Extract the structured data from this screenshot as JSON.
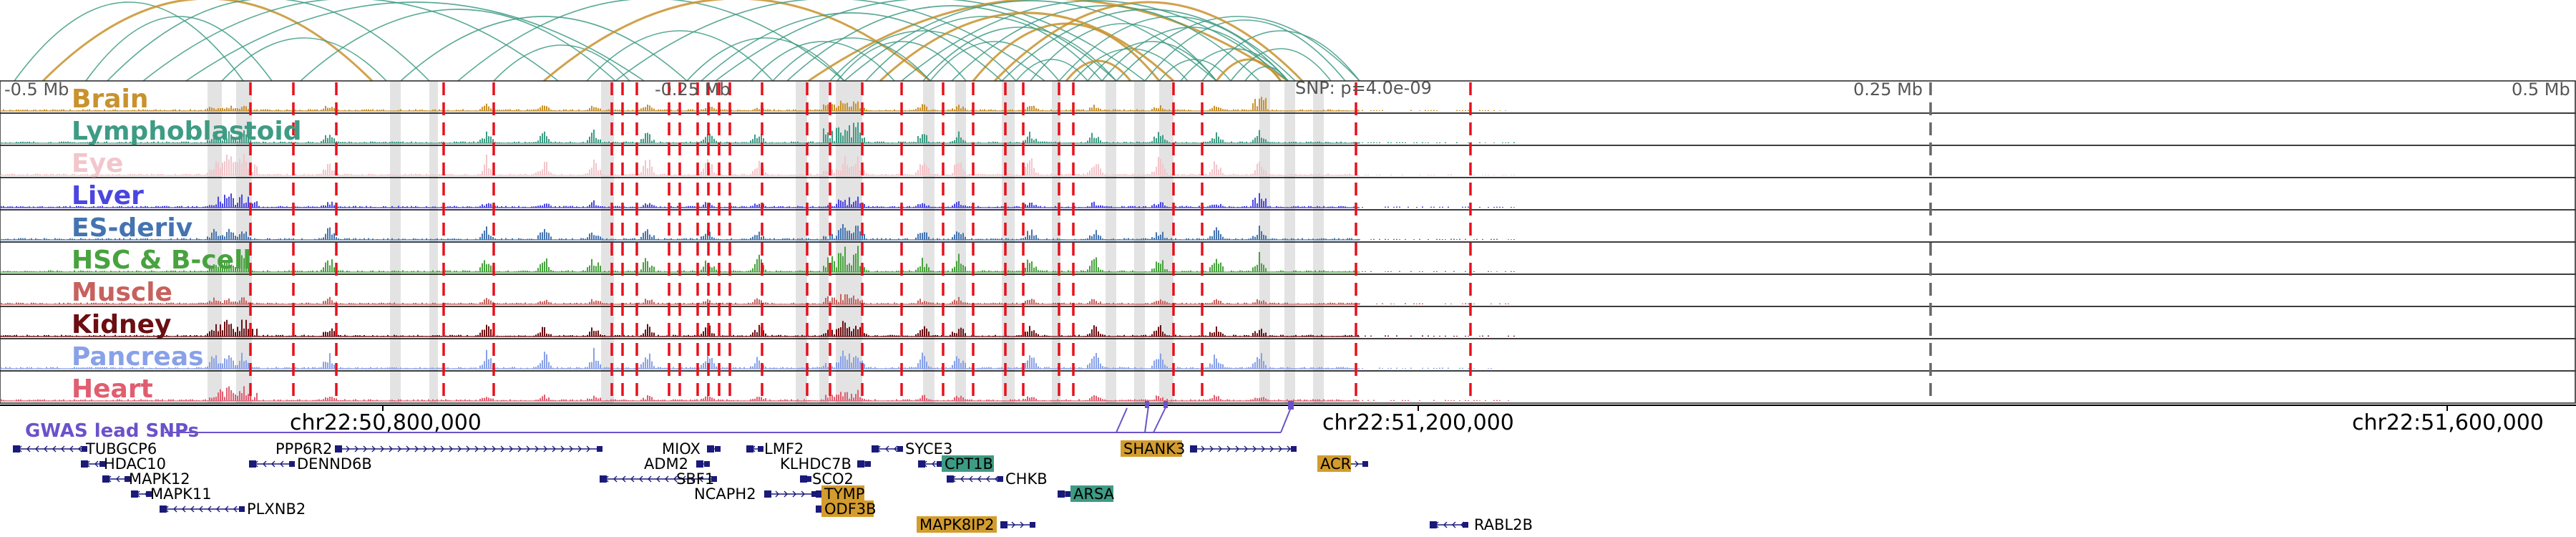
{
  "colors": {
    "brain": "#c8922d",
    "lymphoblastoid": "#3e9b84",
    "eye": "#f2c6cb",
    "liver": "#4a46e0",
    "es_deriv": "#4474b0",
    "hsc_bcell": "#48a23e",
    "muscle": "#c6625e",
    "kidney": "#6b0f12",
    "pancreas": "#88a1e8",
    "heart": "#e05e6f",
    "snp": "#6b52c9",
    "red_dash": "#e8101c",
    "gene_strand": "#1a1a7a",
    "gene_highlight_orange": "#d39c2e",
    "gene_highlight_teal": "#3e9b84",
    "arc_green": "#3e9b84",
    "arc_orange": "#c8922d"
  },
  "distance_labels": [
    "-0.5 Mb",
    "-0.25 Mb",
    "SNP: p=4.0e-09",
    "0.25 Mb",
    "0.5 Mb"
  ],
  "tracks": [
    {
      "name": "Brain",
      "key": "brain"
    },
    {
      "name": "Lymphoblastoid",
      "key": "lymphoblastoid"
    },
    {
      "name": "Eye",
      "key": "eye"
    },
    {
      "name": "Liver",
      "key": "liver"
    },
    {
      "name": "ES-deriv",
      "key": "es_deriv"
    },
    {
      "name": "HSC & B-cell",
      "key": "hsc_bcell"
    },
    {
      "name": "Muscle",
      "key": "muscle"
    },
    {
      "name": "Kidney",
      "key": "kidney"
    },
    {
      "name": "Pancreas",
      "key": "pancreas"
    },
    {
      "name": "Heart",
      "key": "heart"
    }
  ],
  "coordinates": [
    "chr22:50,800,000",
    "chr22:51,200,000",
    "chr22:51,600,000"
  ],
  "gwas_label": "GWAS lead SNPs",
  "genes": [
    {
      "name": "TUBGCP6"
    },
    {
      "name": "HDAC10"
    },
    {
      "name": "MAPK12"
    },
    {
      "name": "MAPK11"
    },
    {
      "name": "PLXNB2"
    },
    {
      "name": "PPP6R2"
    },
    {
      "name": "DENND6B"
    },
    {
      "name": "MIOX"
    },
    {
      "name": "ADM2"
    },
    {
      "name": "SBF1"
    },
    {
      "name": "NCAPH2"
    },
    {
      "name": "LMF2"
    },
    {
      "name": "KLHDC7B"
    },
    {
      "name": "SCO2"
    },
    {
      "name": "TYMP",
      "highlight": "orange"
    },
    {
      "name": "ODF3B",
      "highlight": "orange"
    },
    {
      "name": "SYCE3"
    },
    {
      "name": "CPT1B",
      "highlight": "teal"
    },
    {
      "name": "CHKB"
    },
    {
      "name": "MAPK8IP2",
      "highlight": "orange"
    },
    {
      "name": "ARSA",
      "highlight": "teal"
    },
    {
      "name": "SHANK3",
      "highlight": "orange"
    },
    {
      "name": "ACR",
      "highlight": "orange"
    },
    {
      "name": "RABL2B"
    }
  ]
}
